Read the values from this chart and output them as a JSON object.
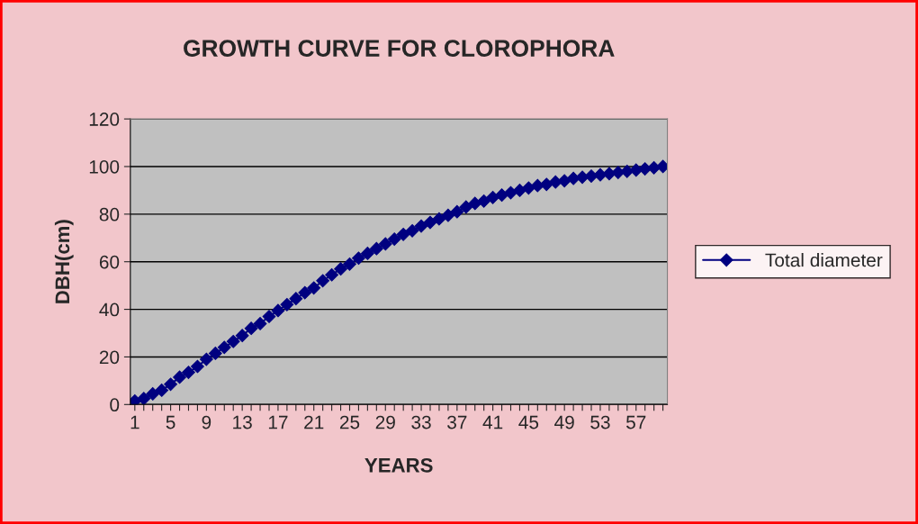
{
  "chart_data": {
    "type": "line",
    "title": "GROWTH CURVE FOR CLOROPHORA",
    "xlabel": "YEARS",
    "ylabel": "DBH(cm)",
    "categories": [
      "1",
      null,
      null,
      null,
      "5",
      null,
      null,
      null,
      "9",
      null,
      null,
      null,
      "13",
      null,
      null,
      null,
      "17",
      null,
      null,
      null,
      "21",
      null,
      null,
      null,
      "25",
      null,
      null,
      null,
      "29",
      null,
      null,
      null,
      "33",
      null,
      null,
      null,
      "37",
      null,
      null,
      null,
      "41",
      null,
      null,
      null,
      "45",
      null,
      null,
      null,
      "49",
      null,
      null,
      null,
      "53",
      null,
      null,
      null,
      "57",
      null,
      null,
      null
    ],
    "series": [
      {
        "name": "Total diameter",
        "color": "#000080",
        "values": [
          1.5,
          2.5,
          4.5,
          6,
          8.5,
          11.5,
          13.5,
          16,
          19,
          21.5,
          24,
          26.5,
          29,
          32,
          34,
          37,
          39.5,
          42,
          44.5,
          47,
          49,
          52,
          54.5,
          57,
          59,
          61.5,
          63.5,
          65.5,
          67.5,
          69.5,
          71.5,
          73,
          75,
          76.5,
          78,
          79.5,
          81,
          83,
          84.5,
          85.5,
          87,
          88,
          89,
          90,
          91,
          92,
          92.5,
          93.5,
          94,
          95,
          95.5,
          96,
          96.5,
          97,
          97.5,
          98,
          98.5,
          99,
          99.5,
          100
        ]
      }
    ],
    "ylim": [
      0,
      120
    ],
    "yticks": [
      0,
      20,
      40,
      60,
      80,
      100,
      120
    ],
    "grid": "y",
    "legend": "right",
    "marker": "diamond",
    "line_style": "solid"
  }
}
